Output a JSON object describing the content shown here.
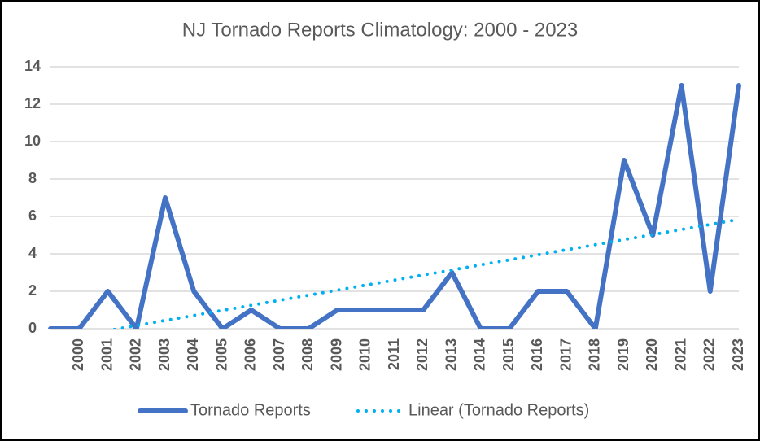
{
  "chart_data": {
    "type": "line",
    "title": "NJ Tornado Reports Climatology: 2000 - 2023",
    "categories": [
      null,
      "2000",
      "2001",
      "2002",
      "2003",
      "2004",
      "2005",
      "2006",
      "2007",
      "2008",
      "2009",
      "2010",
      "2011",
      "2012",
      "2013",
      "2014",
      "2015",
      "2016",
      "2017",
      "2018",
      "2019",
      "2020",
      "2021",
      "2022",
      "2023"
    ],
    "series": [
      {
        "name": "Tornado Reports",
        "color": "#4472c4",
        "values": [
          0,
          0,
          2,
          0,
          7,
          2,
          0,
          1,
          0,
          0,
          1,
          1,
          1,
          1,
          3,
          0,
          0,
          2,
          2,
          0,
          9,
          5,
          13,
          2,
          13
        ]
      },
      {
        "name": "Linear (Tornado Reports)",
        "color": "#00b0f0",
        "dotted": true,
        "values": [
          -0.64,
          -0.37,
          -0.1,
          0.17,
          0.44,
          0.71,
          0.98,
          1.25,
          1.52,
          1.79,
          2.06,
          2.33,
          2.6,
          2.87,
          3.14,
          3.41,
          3.68,
          3.95,
          4.22,
          4.49,
          4.76,
          5.03,
          5.3,
          5.57,
          5.84
        ]
      }
    ],
    "ylim": [
      0,
      14
    ],
    "yticks": [
      0,
      2,
      4,
      6,
      8,
      10,
      12,
      14
    ],
    "grid": true,
    "legend": "bottom"
  }
}
